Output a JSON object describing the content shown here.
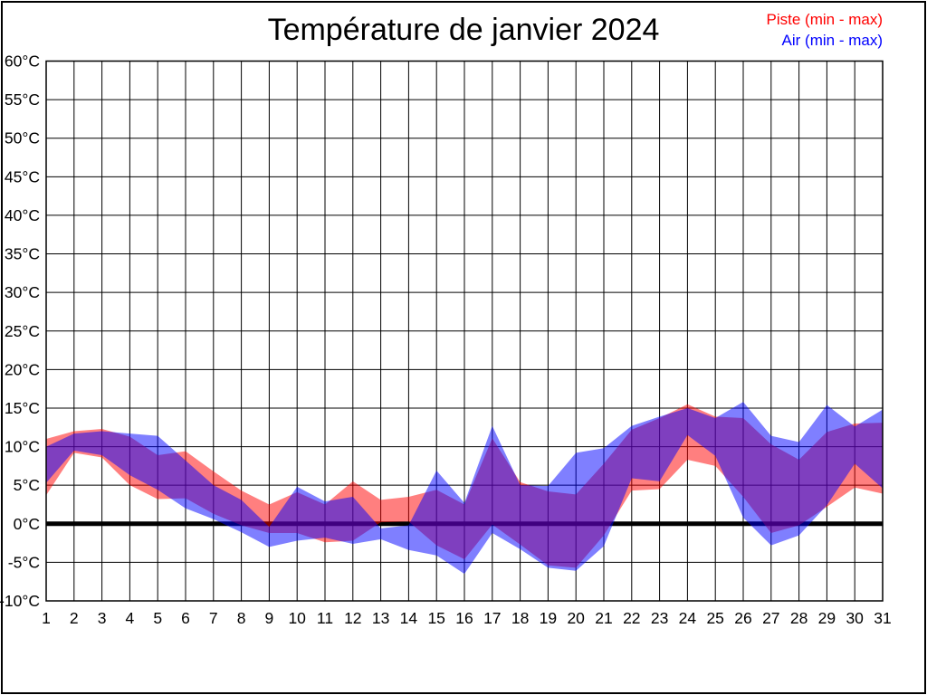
{
  "title": "Température de janvier 2024",
  "legend": {
    "piste_label": "Piste (min - max)",
    "piste_color": "#ff0000",
    "air_label": "Air (min - max)",
    "air_color": "#0000ff"
  },
  "chart_data": {
    "type": "area",
    "subtype": "min-max range bands",
    "title": "Température de janvier 2024",
    "xlabel": "",
    "ylabel": "",
    "x": [
      1,
      2,
      3,
      4,
      5,
      6,
      7,
      8,
      9,
      10,
      11,
      12,
      13,
      14,
      15,
      16,
      17,
      18,
      19,
      20,
      21,
      22,
      23,
      24,
      25,
      26,
      27,
      28,
      29,
      30,
      31
    ],
    "x_tick_labels": [
      "1",
      "2",
      "3",
      "4",
      "5",
      "6",
      "7",
      "8",
      "9",
      "10",
      "11",
      "12",
      "13",
      "14",
      "15",
      "16",
      "17",
      "18",
      "19",
      "20",
      "21",
      "22",
      "23",
      "24",
      "25",
      "26",
      "27",
      "28",
      "29",
      "30",
      "31"
    ],
    "y_ticks": [
      60,
      55,
      50,
      45,
      40,
      35,
      30,
      25,
      20,
      15,
      10,
      5,
      0,
      -5,
      -10
    ],
    "y_tick_labels": [
      "60°C",
      "55°C",
      "50°C",
      "45°C",
      "40°C",
      "35°C",
      "30°C",
      "25°C",
      "20°C",
      "15°C",
      "10°C",
      "5°C",
      "0°C",
      "-5°C",
      "-10°C"
    ],
    "ylim": [
      -10,
      60
    ],
    "grid": true,
    "zero_line": {
      "value": 0,
      "color": "#000000",
      "width": 5
    },
    "legend_position": "top-right",
    "series": [
      {
        "name": "Piste (min - max)",
        "color": "#ff0000",
        "fill_opacity": 0.5,
        "min": [
          3.7,
          9.2,
          8.6,
          5.0,
          3.2,
          3.3,
          1.3,
          -0.2,
          -1.2,
          -1.2,
          -2.4,
          -2.2,
          0.2,
          0.3,
          -2.8,
          -4.6,
          -0.1,
          -2.7,
          -5.4,
          -5.7,
          -1.5,
          4.3,
          4.5,
          8.3,
          7.5,
          3.5,
          -1.2,
          -0.2,
          2.2,
          4.7,
          3.9
        ],
        "max": [
          11.0,
          12.0,
          12.3,
          11.3,
          8.9,
          9.4,
          6.8,
          4.3,
          2.5,
          4.1,
          2.5,
          5.5,
          3.1,
          3.5,
          4.4,
          2.5,
          11.1,
          5.4,
          4.2,
          3.8,
          7.8,
          12.2,
          13.7,
          15.5,
          13.9,
          13.7,
          10.3,
          8.3,
          11.9,
          13.0,
          13.1
        ]
      },
      {
        "name": "Air (min - max)",
        "color": "#0000ff",
        "fill_opacity": 0.5,
        "min": [
          5.3,
          9.5,
          8.9,
          6.3,
          4.4,
          2.0,
          0.6,
          -1.1,
          -3.0,
          -2.2,
          -1.8,
          -2.6,
          -2.0,
          -3.4,
          -4.1,
          -6.5,
          -1.2,
          -3.3,
          -5.7,
          -6.1,
          -2.9,
          5.9,
          5.5,
          11.5,
          8.8,
          0.8,
          -2.8,
          -1.5,
          2.4,
          7.8,
          4.6
        ],
        "max": [
          10.0,
          11.7,
          12.0,
          11.7,
          11.4,
          8.2,
          5.0,
          3.1,
          -0.4,
          4.8,
          2.9,
          3.5,
          -0.6,
          -0.2,
          6.9,
          2.7,
          12.7,
          5.0,
          4.9,
          9.2,
          9.8,
          12.7,
          13.9,
          15.0,
          13.7,
          15.8,
          11.4,
          10.6,
          15.4,
          12.6,
          14.8
        ]
      }
    ]
  }
}
